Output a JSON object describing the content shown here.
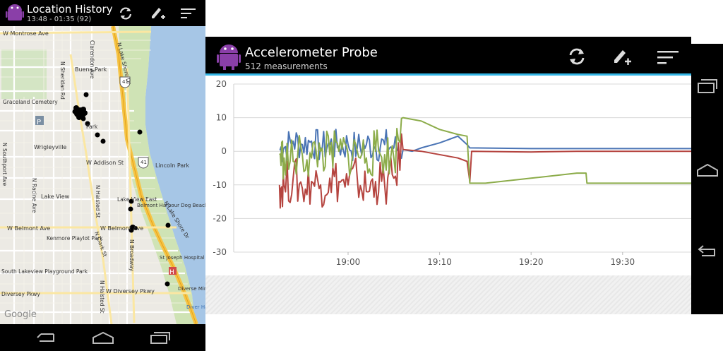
{
  "left_app": {
    "title": "Location History",
    "subtitle": "13:48 - 01:35 (92)",
    "icons": [
      "android-logo-icon",
      "refresh-icon",
      "edit-add-icon",
      "sort-menu-icon"
    ],
    "map": {
      "labels": [
        "W Montrose Ave",
        "N Sheridan Rd",
        "Clarendon Ave",
        "N Lake Shore Dr",
        "Buena Park",
        "Graceland Cemetery",
        "Wrigleyville",
        "W Addison St",
        "Lincoln Park",
        "N Southport Ave",
        "Lake View",
        "N Racine Ave",
        "N Halsted St",
        "Lake View East",
        "Belmont Harbour Dog Beach",
        "W Belmont Ave",
        "Kenmore Playlot Park",
        "N Clark St",
        "N Broadway",
        "N Lake Shore Dr",
        "South Lakeview Playground Park",
        "St Joseph Hospital",
        "W Diversey Pkwy",
        "Diversey Pkwy",
        "Diverse Miniature",
        "Diver Harb",
        "Google",
        "N Halsted St",
        "41",
        "41"
      ],
      "park_label": "Park",
      "p_label": "P",
      "h_label": "H"
    },
    "nav": [
      "back-icon",
      "home-icon",
      "recent-apps-icon"
    ]
  },
  "right_app": {
    "title": "Accelerometer Probe",
    "subtitle": "512 measurements",
    "accent": "#33b5e5",
    "icons": [
      "android-logo-icon",
      "refresh-icon",
      "edit-add-icon",
      "sort-menu-icon"
    ],
    "nav": [
      "recent-apps-icon",
      "home-icon",
      "back-icon"
    ]
  },
  "chart_data": {
    "type": "line",
    "title": "",
    "xlabel": "",
    "ylabel": "",
    "x_ticks": [
      "19:00",
      "19:10",
      "19:20",
      "19:30"
    ],
    "y_ticks": [
      "20",
      "10",
      "0",
      "-10",
      "-20",
      "-30"
    ],
    "ylim": [
      -30,
      20
    ],
    "xlim_minutes_after_18": [
      47.5,
      97.5
    ],
    "grid": true,
    "series": [
      {
        "color": "#4a74b5",
        "points": [
          [
            52.5,
            0.5
          ],
          [
            53,
            1
          ],
          [
            54,
            3
          ],
          [
            55,
            2
          ],
          [
            56,
            3
          ],
          [
            57,
            1
          ],
          [
            58,
            2
          ],
          [
            59,
            1.5
          ],
          [
            60,
            2
          ],
          [
            61,
            1
          ],
          [
            62,
            2
          ],
          [
            63,
            1.5
          ],
          [
            64,
            2
          ],
          [
            65,
            1
          ],
          [
            66,
            0.5
          ],
          [
            67,
            0
          ],
          [
            68,
            1
          ],
          [
            70,
            2.5
          ],
          [
            72,
            4.5
          ],
          [
            73,
            2
          ],
          [
            73.3,
            1
          ],
          [
            80,
            0.8
          ],
          [
            85,
            0.8
          ],
          [
            90,
            0.8
          ],
          [
            96,
            0.8
          ],
          [
            97.5,
            0.8
          ]
        ]
      },
      {
        "color": "#b5443f",
        "points": [
          [
            52.5,
            -10
          ],
          [
            53,
            -10
          ],
          [
            54,
            -8
          ],
          [
            55,
            -11
          ],
          [
            56,
            -9
          ],
          [
            57,
            -10
          ],
          [
            58,
            -8
          ],
          [
            59,
            -9
          ],
          [
            60,
            -10
          ],
          [
            61,
            -8
          ],
          [
            62,
            -12
          ],
          [
            63,
            -9
          ],
          [
            64,
            -10
          ],
          [
            65,
            -8
          ],
          [
            66,
            0.5
          ],
          [
            68,
            0
          ],
          [
            72,
            -2
          ],
          [
            73,
            -3
          ],
          [
            73.3,
            -9
          ],
          [
            73.5,
            0
          ],
          [
            80,
            -0.2
          ],
          [
            85,
            0
          ],
          [
            90,
            0
          ],
          [
            96,
            0
          ],
          [
            97.5,
            0
          ]
        ]
      },
      {
        "color": "#8cac4a",
        "points": [
          [
            52.5,
            -1
          ],
          [
            53,
            -2
          ],
          [
            54,
            -3
          ],
          [
            55,
            -1
          ],
          [
            56,
            -2
          ],
          [
            57,
            0
          ],
          [
            58,
            -1
          ],
          [
            59,
            0
          ],
          [
            60,
            -1
          ],
          [
            61,
            0
          ],
          [
            62,
            -2
          ],
          [
            63,
            0
          ],
          [
            64,
            -1
          ],
          [
            65,
            -2
          ],
          [
            66,
            10
          ],
          [
            68,
            9
          ],
          [
            70,
            6.5
          ],
          [
            72,
            5
          ],
          [
            73,
            4.5
          ],
          [
            73.3,
            -9.5
          ],
          [
            75,
            -9.5
          ],
          [
            80,
            -8
          ],
          [
            85,
            -6.5
          ],
          [
            86,
            -6.5
          ],
          [
            86.1,
            -9.5
          ],
          [
            90,
            -9.5
          ],
          [
            96,
            -9.5
          ],
          [
            97.5,
            -9.5
          ]
        ]
      }
    ]
  }
}
